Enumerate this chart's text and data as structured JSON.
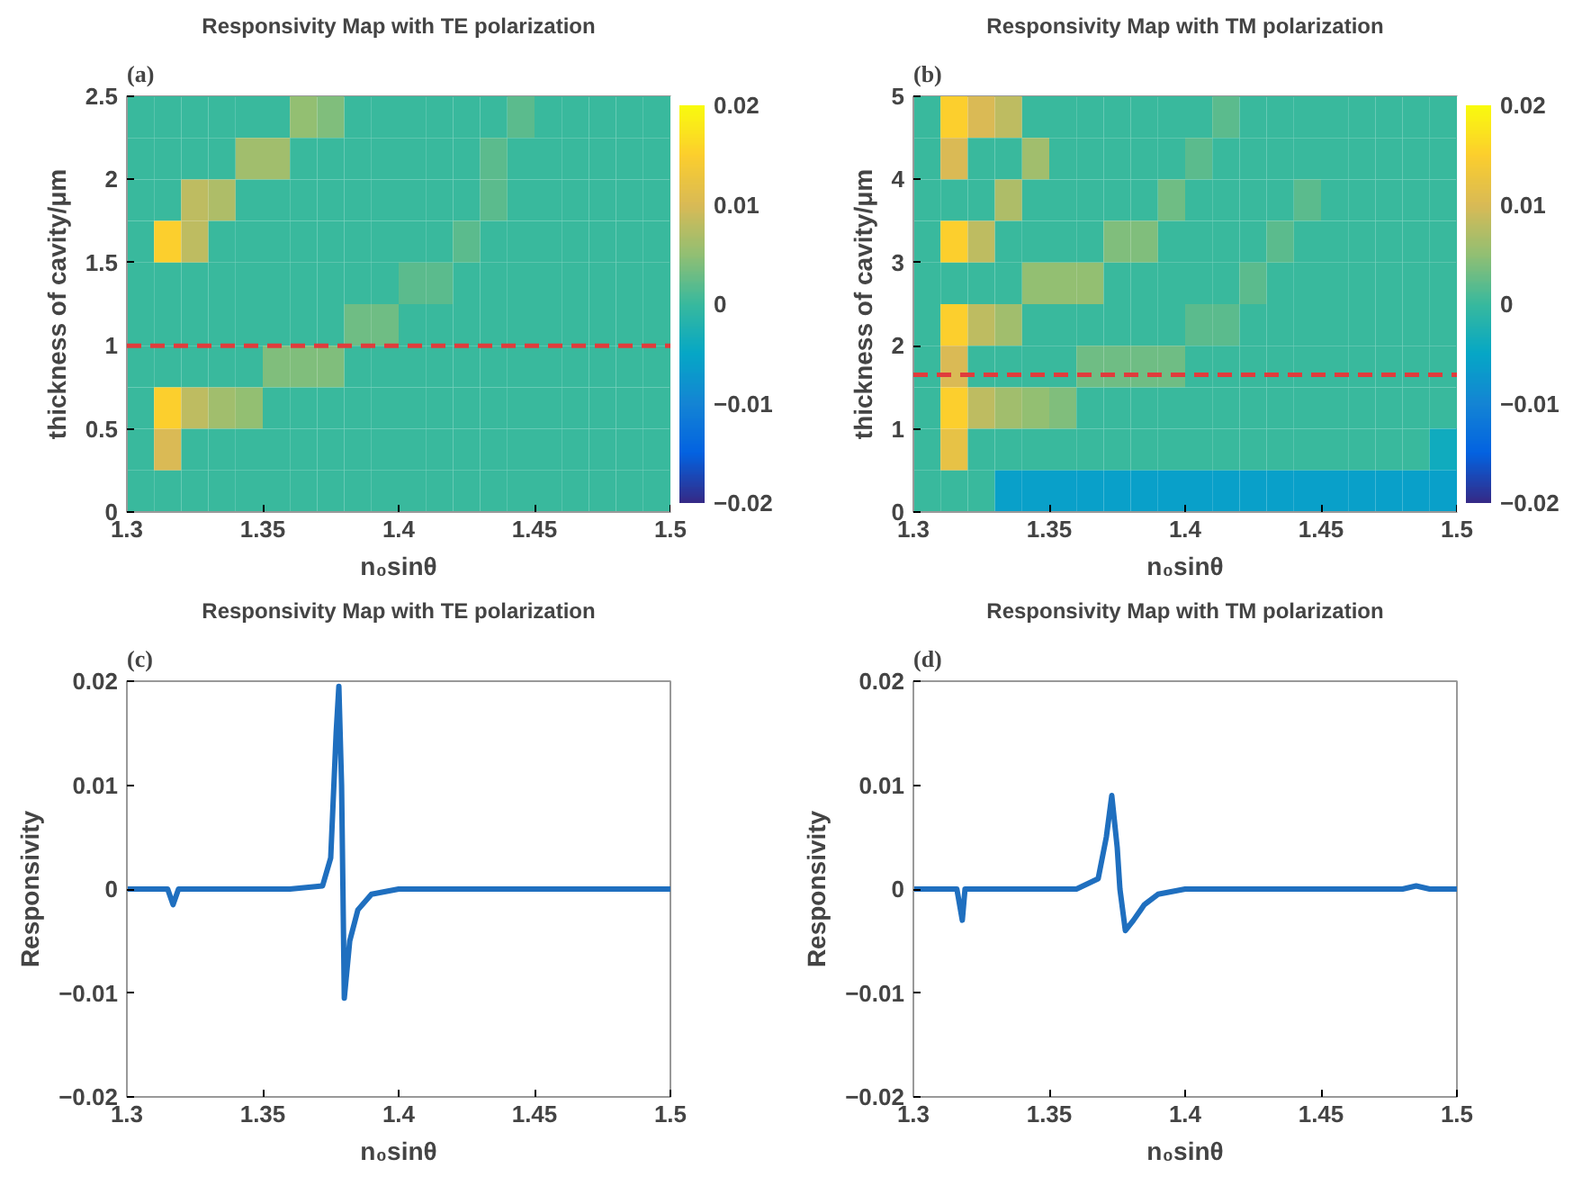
{
  "chart_data": [
    {
      "type": "heatmap",
      "title": "Responsivity Map with TE polarization",
      "annotations": [
        "(a)"
      ],
      "xlabel": "n₀sinθ",
      "ylabel": "thickness of cavity/μm",
      "x": [
        1.305,
        1.315,
        1.325,
        1.335,
        1.345,
        1.355,
        1.365,
        1.375,
        1.385,
        1.395,
        1.405,
        1.415,
        1.425,
        1.435,
        1.445,
        1.455,
        1.465,
        1.475,
        1.485,
        1.495
      ],
      "y": [
        2.375,
        2.125,
        1.875,
        1.625,
        1.375,
        1.125,
        0.875,
        0.625,
        0.375,
        0.125
      ],
      "xlim": [
        1.3,
        1.5
      ],
      "xticks": [
        1.3,
        1.35,
        1.4,
        1.45,
        1.5
      ],
      "ylim": [
        0,
        2.5
      ],
      "yticks": [
        0,
        0.5,
        1,
        1.5,
        2,
        2.5
      ],
      "clim": [
        -0.02,
        0.02
      ],
      "cticks": [
        -0.02,
        -0.01,
        0,
        0.01,
        0.02
      ],
      "ref_lines": [
        {
          "axis": "y",
          "value": 1,
          "color": "#e03c3c",
          "line_style": "dashed"
        }
      ],
      "cells": [
        [
          0,
          0,
          0,
          0,
          0,
          0,
          0.005,
          0.004,
          0,
          0,
          0,
          0,
          0,
          0,
          0.002,
          0,
          0,
          0,
          0,
          0
        ],
        [
          0,
          0,
          0,
          0,
          0.006,
          0.006,
          0,
          0,
          0,
          0,
          0,
          0,
          0,
          0.002,
          0,
          0,
          0,
          0,
          0,
          0
        ],
        [
          0,
          0,
          0.008,
          0.007,
          0,
          0,
          0,
          0,
          0,
          0,
          0,
          0,
          0,
          0.002,
          0,
          0,
          0,
          0,
          0,
          0
        ],
        [
          0,
          0.015,
          0.008,
          0,
          0,
          0,
          0,
          0,
          0,
          0,
          0,
          0,
          0.002,
          0,
          0,
          0,
          0,
          0,
          0,
          0
        ],
        [
          0,
          0,
          0,
          0,
          0,
          0,
          0,
          0,
          0,
          0,
          0.002,
          0.002,
          0,
          0,
          0,
          0,
          0,
          0,
          0,
          0
        ],
        [
          0,
          0,
          0,
          0,
          0,
          0,
          0,
          0,
          0.003,
          0.003,
          0,
          0,
          0,
          0,
          0,
          0,
          0,
          0,
          0,
          0
        ],
        [
          0,
          0,
          0,
          0,
          0,
          0.004,
          0.004,
          0.004,
          0,
          0,
          0,
          0,
          0,
          0,
          0,
          0,
          0,
          0,
          0,
          0
        ],
        [
          0,
          0.015,
          0.008,
          0.006,
          0.005,
          0,
          0,
          0,
          0,
          0,
          0,
          0,
          0,
          0,
          0,
          0,
          0,
          0,
          0,
          0
        ],
        [
          0,
          0.01,
          0,
          0,
          0,
          0,
          0,
          0,
          0,
          0,
          0,
          0,
          0,
          0,
          0,
          0,
          0,
          0,
          0,
          0
        ],
        [
          0,
          0,
          0,
          0,
          0,
          0,
          0,
          0,
          0,
          0,
          0,
          0,
          0,
          0,
          0,
          0,
          0,
          0,
          0,
          0
        ]
      ]
    },
    {
      "type": "heatmap",
      "title": "Responsivity Map with TM polarization",
      "annotations": [
        "(b)"
      ],
      "xlabel": "n₀sinθ",
      "ylabel": "thickness of cavity/μm",
      "x": [
        1.305,
        1.315,
        1.325,
        1.335,
        1.345,
        1.355,
        1.365,
        1.375,
        1.385,
        1.395,
        1.405,
        1.415,
        1.425,
        1.435,
        1.445,
        1.455,
        1.465,
        1.475,
        1.485,
        1.495
      ],
      "y": [
        4.75,
        4.25,
        3.75,
        3.25,
        2.75,
        2.25,
        1.75,
        1.25,
        0.75,
        0.25
      ],
      "xlim": [
        1.3,
        1.5
      ],
      "xticks": [
        1.3,
        1.35,
        1.4,
        1.45,
        1.5
      ],
      "ylim": [
        0,
        5
      ],
      "yticks": [
        0,
        1,
        2,
        3,
        4,
        5
      ],
      "clim": [
        -0.02,
        0.02
      ],
      "cticks": [
        -0.02,
        -0.01,
        0,
        0.01,
        0.02
      ],
      "ref_lines": [
        {
          "axis": "y",
          "value": 1.65,
          "color": "#e03c3c",
          "line_style": "dashed"
        }
      ],
      "cells": [
        [
          0,
          0.015,
          0.01,
          0.008,
          0,
          0,
          0,
          0,
          0,
          0,
          0,
          0.002,
          0,
          0,
          0,
          0,
          0,
          0,
          0,
          0
        ],
        [
          0,
          0.01,
          0,
          0,
          0.006,
          0,
          0,
          0,
          0,
          0,
          0.002,
          0,
          0,
          0,
          0,
          0,
          0,
          0,
          0,
          0
        ],
        [
          0,
          0,
          0,
          0.007,
          0,
          0,
          0,
          0,
          0,
          0.003,
          0,
          0,
          0,
          0,
          0.002,
          0,
          0,
          0,
          0,
          0
        ],
        [
          0,
          0.015,
          0.008,
          0,
          0,
          0,
          0,
          0.004,
          0.004,
          0,
          0,
          0,
          0,
          0.002,
          0,
          0,
          0,
          0,
          0,
          0
        ],
        [
          0,
          0,
          0,
          0,
          0.005,
          0.005,
          0.005,
          0,
          0,
          0,
          0,
          0,
          0.002,
          0,
          0,
          0,
          0,
          0,
          0,
          0
        ],
        [
          0,
          0.015,
          0.008,
          0.006,
          0,
          0,
          0,
          0,
          0,
          0,
          0.002,
          0.002,
          0,
          0,
          0,
          0,
          0,
          0,
          0,
          0
        ],
        [
          0,
          0.01,
          0,
          0,
          0,
          0,
          0.003,
          0.003,
          0.003,
          0.003,
          0,
          0,
          0,
          0,
          0,
          0,
          0,
          0,
          0,
          0
        ],
        [
          0,
          0.015,
          0.008,
          0.006,
          0.005,
          0.004,
          0,
          0,
          0,
          0,
          0,
          0,
          0,
          0,
          0,
          0,
          0,
          0,
          0,
          0
        ],
        [
          0,
          0.012,
          0,
          0,
          0,
          0,
          0,
          0,
          0,
          0,
          0,
          0,
          0,
          0,
          0,
          0,
          0,
          0,
          0,
          -0.004
        ],
        [
          0,
          0,
          0,
          -0.006,
          -0.006,
          -0.006,
          -0.006,
          -0.006,
          -0.006,
          -0.006,
          -0.006,
          -0.006,
          -0.006,
          -0.006,
          -0.006,
          -0.006,
          -0.006,
          -0.006,
          -0.006,
          -0.006
        ]
      ]
    },
    {
      "type": "line",
      "title": "Responsivity Map with TE polarization",
      "annotations": [
        "(c)"
      ],
      "xlabel": "n₀sinθ",
      "ylabel": "Responsivity",
      "xlim": [
        1.3,
        1.5
      ],
      "xticks": [
        1.3,
        1.35,
        1.4,
        1.45,
        1.5
      ],
      "ylim": [
        -0.02,
        0.02
      ],
      "yticks": [
        -0.02,
        -0.01,
        0,
        0.01,
        0.02
      ],
      "x": [
        1.3,
        1.315,
        1.317,
        1.319,
        1.36,
        1.372,
        1.375,
        1.377,
        1.378,
        1.379,
        1.3795,
        1.38,
        1.382,
        1.385,
        1.39,
        1.4,
        1.5
      ],
      "series": [
        {
          "color": "#1f6fbf",
          "values": [
            0,
            0,
            -0.0015,
            0,
            0,
            0.0003,
            0.003,
            0.015,
            0.0195,
            0.01,
            0,
            -0.0105,
            -0.005,
            -0.002,
            -0.0005,
            0,
            0
          ]
        }
      ]
    },
    {
      "type": "line",
      "title": "Responsivity Map with TM polarization",
      "annotations": [
        "(d)"
      ],
      "xlabel": "n₀sinθ",
      "ylabel": "Responsivity",
      "xlim": [
        1.3,
        1.5
      ],
      "xticks": [
        1.3,
        1.35,
        1.4,
        1.45,
        1.5
      ],
      "ylim": [
        -0.02,
        0.02
      ],
      "yticks": [
        -0.02,
        -0.01,
        0,
        0.01,
        0.02
      ],
      "x": [
        1.3,
        1.316,
        1.318,
        1.319,
        1.36,
        1.368,
        1.371,
        1.373,
        1.375,
        1.376,
        1.378,
        1.381,
        1.385,
        1.39,
        1.4,
        1.48,
        1.485,
        1.49,
        1.5
      ],
      "series": [
        {
          "color": "#1f6fbf",
          "values": [
            0,
            0,
            -0.003,
            0,
            0,
            0.001,
            0.005,
            0.009,
            0.004,
            0,
            -0.004,
            -0.003,
            -0.0015,
            -0.0005,
            0,
            0,
            0.0003,
            0,
            0
          ]
        }
      ]
    }
  ]
}
